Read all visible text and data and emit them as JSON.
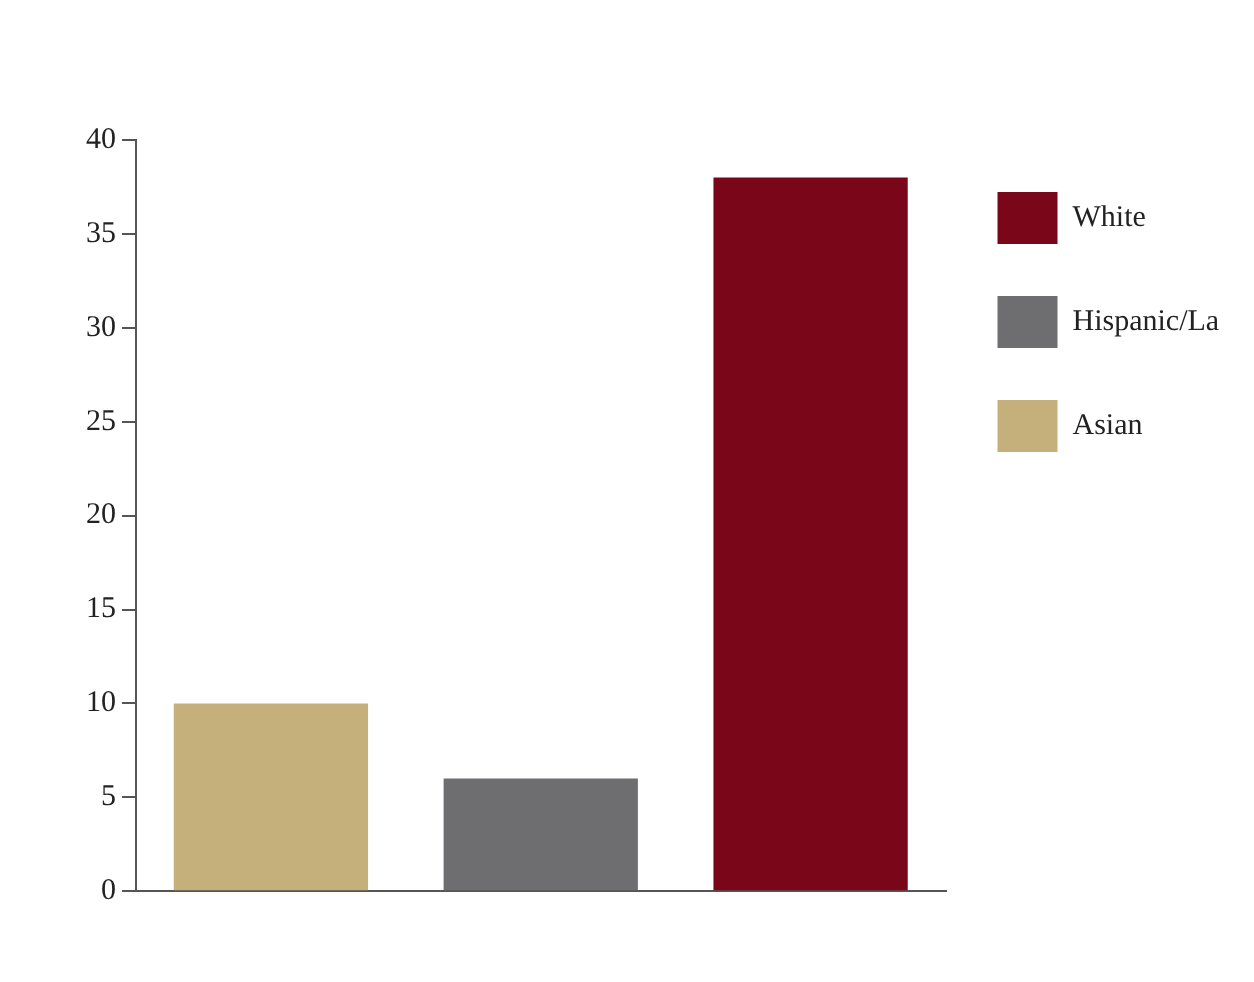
{
  "chart_data": {
    "type": "bar",
    "categories": [
      null,
      null,
      null
    ],
    "series": [
      {
        "name": "White",
        "color": "#7a0719",
        "values": [
          null,
          null,
          38
        ]
      },
      {
        "name": "Hispanic/La",
        "color": "#6e6e70",
        "values": [
          null,
          6,
          null
        ]
      },
      {
        "name": "Asian",
        "color": "#c5b07c",
        "values": [
          10,
          null,
          null
        ]
      }
    ],
    "ylim": [
      0,
      40
    ],
    "yticks": [
      0,
      5,
      10,
      15,
      20,
      25,
      30,
      35,
      40
    ],
    "grid": false,
    "legend": "top right"
  }
}
